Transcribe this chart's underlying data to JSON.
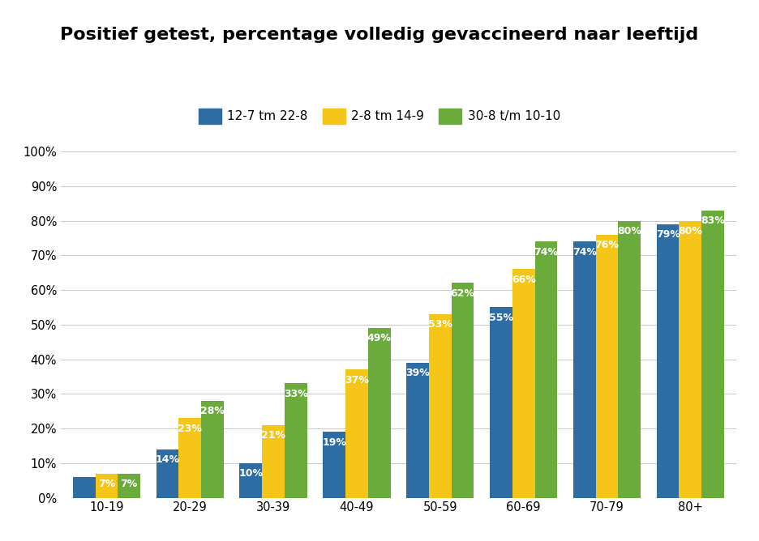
{
  "title": "Positief getest, percentage volledig gevaccineerd naar leeftijd",
  "categories": [
    "10-19",
    "20-29",
    "30-39",
    "40-49",
    "50-59",
    "60-69",
    "70-79",
    "80+"
  ],
  "series": [
    {
      "label": "12-7 tm 22-8",
      "color": "#2E6DA4",
      "values": [
        6,
        14,
        10,
        19,
        39,
        55,
        74,
        79
      ]
    },
    {
      "label": "2-8 tm 14-9",
      "color": "#F5C518",
      "values": [
        7,
        23,
        21,
        37,
        53,
        66,
        76,
        80
      ]
    },
    {
      "label": "30-8 t/m 10-10",
      "color": "#6AAB3C",
      "values": [
        7,
        28,
        33,
        49,
        62,
        74,
        80,
        83
      ]
    }
  ],
  "ylim": [
    0,
    100
  ],
  "yticks": [
    0,
    10,
    20,
    30,
    40,
    50,
    60,
    70,
    80,
    90,
    100
  ],
  "ytick_labels": [
    "0%",
    "10%",
    "20%",
    "30%",
    "40%",
    "50%",
    "60%",
    "70%",
    "80%",
    "90%",
    "100%"
  ],
  "bar_width": 0.27,
  "background_color": "#FFFFFF",
  "grid_color": "#CCCCCC",
  "title_fontsize": 16,
  "label_fontsize": 9,
  "tick_fontsize": 10.5,
  "legend_fontsize": 11
}
